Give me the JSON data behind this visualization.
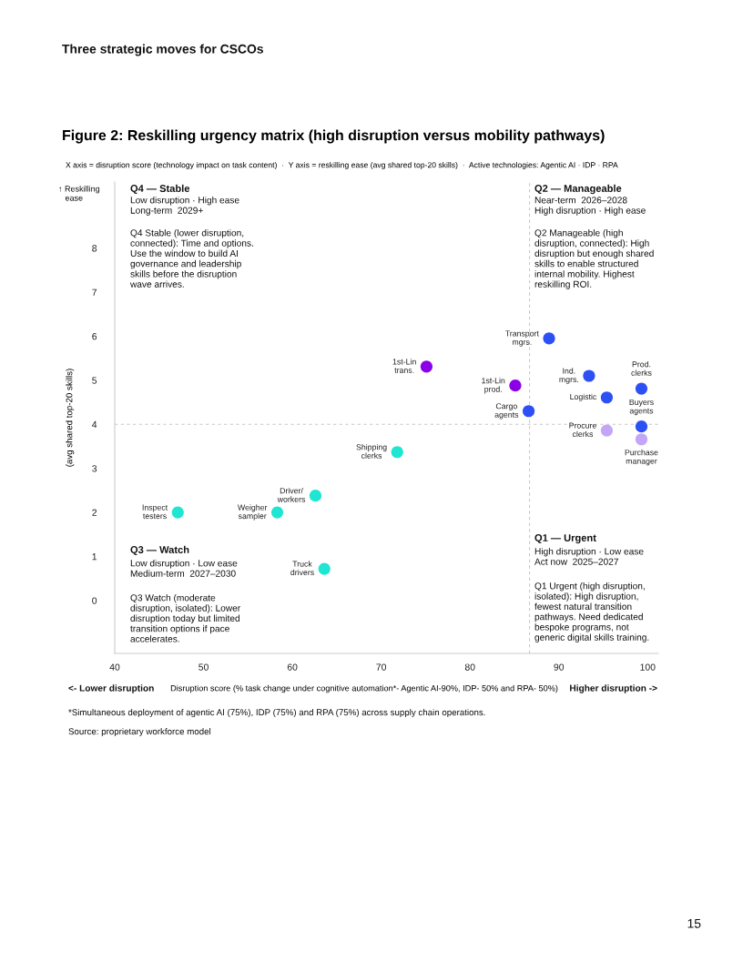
{
  "chart_data": {
    "type": "scatter",
    "title": "Figure 2: Reskilling urgency matrix (high disruption versus mobility pathways)",
    "subtitle": "X axis = disruption score (technology impact on task content)  ·  Y axis = reskilling ease (avg shared top-20 skills)  ·  Active technologies: Agentic AI · IDP · RPA",
    "xlabel": "Disruption score (% task change under cognitive automation*- Agentic AI-90%, IDP- 50% and RPA- 50%)",
    "ylabel": "(avg shared top-20 skills)",
    "xlim": [
      40,
      101.2
    ],
    "xticks": [
      40,
      50,
      60,
      70,
      80,
      90,
      100
    ],
    "ylim": [
      -1.2,
      9.5
    ],
    "yticks": [
      0,
      1,
      2,
      3,
      4,
      5,
      6,
      7,
      8
    ],
    "grid": false,
    "legend": false,
    "marker": "circle",
    "ref_lines": [
      {
        "axis": "x",
        "value": 86.7,
        "color": "#c8c8c8",
        "line_style": "dashed"
      },
      {
        "axis": "y",
        "value": 4.0,
        "color": "#c8c8c8",
        "line_style": "dashed"
      }
    ],
    "series": [
      {
        "color": "#1ee6d2",
        "x": [
          71.8,
          62.6,
          47.1,
          58.3,
          63.6
        ],
        "values": [
          3.37,
          2.38,
          2.0,
          2.0,
          0.72
        ]
      },
      {
        "color": "#8c00e8",
        "x": [
          75.1,
          85.1
        ],
        "values": [
          5.31,
          4.88
        ]
      },
      {
        "color": "#2d50f5",
        "x": [
          88.9,
          93.4,
          99.3,
          95.4,
          86.6,
          99.3
        ],
        "values": [
          5.95,
          5.1,
          4.81,
          4.61,
          4.3,
          3.95
        ]
      },
      {
        "color": "#c3a6f7",
        "x": [
          95.4,
          99.3
        ],
        "values": [
          3.86,
          3.66
        ]
      }
    ],
    "annotations": [
      {
        "text": "Shipping\nclerks",
        "x": 71.8,
        "y": 3.37
      },
      {
        "text": "Driver/\nworkers",
        "x": 62.6,
        "y": 2.38
      },
      {
        "text": "Inspect\ntesters",
        "x": 47.1,
        "y": 2.0
      },
      {
        "text": "Weigher\nsampler",
        "x": 58.3,
        "y": 2.0
      },
      {
        "text": "Truck\ndrivers",
        "x": 63.6,
        "y": 0.72
      },
      {
        "text": "1st-Lin\ntrans.",
        "x": 75.1,
        "y": 5.31
      },
      {
        "text": "1st-Lin\nprod.",
        "x": 85.1,
        "y": 4.88
      },
      {
        "text": "Transport\nmgrs.",
        "x": 88.9,
        "y": 5.95
      },
      {
        "text": "Ind.\nmgrs.",
        "x": 93.4,
        "y": 5.1
      },
      {
        "text": "Prod.\nclerks",
        "x": 99.3,
        "y": 4.81
      },
      {
        "text": "Logistic",
        "x": 95.4,
        "y": 4.61
      },
      {
        "text": "Cargo\nagents",
        "x": 86.6,
        "y": 4.3
      },
      {
        "text": "Buyers\nagents",
        "x": 99.3,
        "y": 3.95
      },
      {
        "text": "Procure\nclerks",
        "x": 95.4,
        "y": 3.86
      },
      {
        "text": "Purchase\nmanager",
        "x": 99.3,
        "y": 3.66
      },
      "Three strategic moves for CSCOs",
      "↑ Reskilling\n   ease",
      "Q4 — Stable",
      "Low disruption · High ease\nLong-term  2029+",
      "Q4 Stable (lower disruption,\nconnected): Time and options.\nUse the window to build AI\ngovernance and leadership\nskills before the disruption\nwave arrives.",
      "Q2 — Manageable",
      "Near-term  2026–2028\nHigh disruption · High ease",
      "Q2 Manageable (high\ndisruption, connected): High\ndisruption but enough shared\nskills to enable structured\ninternal mobility. Highest\nreskilling ROI.",
      "Q3 — Watch",
      "Low disruption · Low ease\nMedium-term  2027–2030",
      "Q3 Watch (moderate\ndisruption, isolated): Lower\ndisruption today but limited\ntransition options if pace\naccelerates.",
      "Q1 — Urgent",
      "High disruption · Low ease\nAct now  2025–2027",
      "Q1 Urgent (high disruption,\nisolated): High disruption,\nfewest natural transition\npathways. Need dedicated\nbespoke programs, not\ngeneric digital skills training.",
      "<- Lower disruption",
      "Higher disruption ->",
      "*Simultaneous deployment of agentic AI (75%), IDP (75%) and RPA (75%) across supply chain operations.",
      "Source: proprietary workforce model",
      "15"
    ]
  }
}
